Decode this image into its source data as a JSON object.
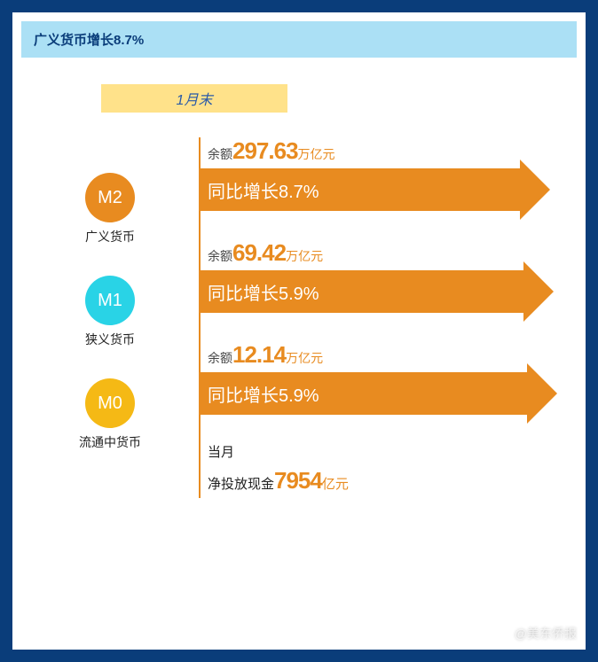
{
  "colors": {
    "page_bg": "#0a3d7a",
    "panel_bg": "#ffffff",
    "header_bg": "#abe0f5",
    "header_text": "#0a3d7a",
    "tag_bg": "#ffe28a",
    "tag_text": "#2a5aa8",
    "accent": "#e88b20",
    "arrow_text": "#ffffff",
    "body_text": "#222"
  },
  "header": {
    "title": "广义货币增长8.7%"
  },
  "month_tag": "1月末",
  "circles": [
    {
      "code": "M2",
      "label": "广义货币",
      "color": "#e88b20"
    },
    {
      "code": "M1",
      "label": "狭义货币",
      "color": "#29d3e6"
    },
    {
      "code": "M0",
      "label": "流通中货币",
      "color": "#f5b915"
    }
  ],
  "arrows": [
    {
      "balance_prefix": "余额",
      "balance_value": "297.63",
      "balance_unit": "万亿元",
      "growth_text": "同比增长8.7%",
      "body_width": 360
    },
    {
      "balance_prefix": "余额",
      "balance_value": "69.42",
      "balance_unit": "万亿元",
      "growth_text": "同比增长5.9%",
      "body_width": 364
    },
    {
      "balance_prefix": "余额",
      "balance_value": "12.14",
      "balance_unit": "万亿元",
      "growth_text": "同比增长5.9%",
      "body_width": 368
    }
  ],
  "footer": {
    "line1": "当月",
    "line2_prefix": "净投放现金",
    "line2_value": "7954",
    "line2_unit": "亿元"
  },
  "watermark": "@美东侨报"
}
